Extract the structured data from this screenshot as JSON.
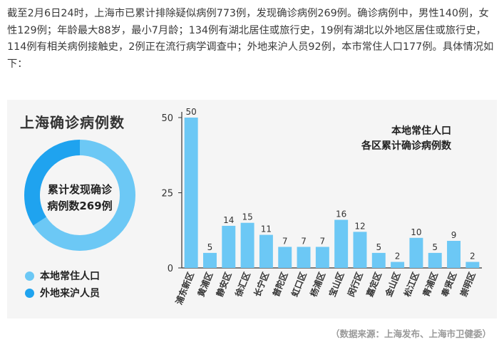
{
  "intro": {
    "text": "截至2月6日24时，上海市已累计排除疑似病例773例，发现确诊病例269例。确诊病例中，男性140例，女性129例；年龄最大88岁，最小7月龄；134例有湖北居住或旅行史，19例有湖北以外地区居住或旅行史，114例有相关病例接触史，2例正在流行病学调查中；外地来沪人员92例，本市常住人口177例。具体情况如下："
  },
  "left_panel": {
    "title": "上海确诊病例数",
    "donut_center_line1": "累计发现确诊",
    "donut_center_line2": "病例数269例",
    "legend": [
      {
        "label": "本地常住人口",
        "color": "#6cc8f5",
        "value": 177
      },
      {
        "label": "外地来沪人员",
        "color": "#1fa3ef",
        "value": 92
      }
    ]
  },
  "chart_data": {
    "type": "bar",
    "title": "本地常住人口\n各区累计确诊病例数",
    "categories": [
      "浦东新区",
      "黄浦区",
      "静安区",
      "徐汇区",
      "长宁区",
      "普陀区",
      "虹口区",
      "杨浦区",
      "宝山区",
      "闵行区",
      "嘉定区",
      "金山区",
      "松江区",
      "青浦区",
      "奉贤区",
      "崇明区"
    ],
    "values": [
      50,
      5,
      14,
      15,
      11,
      7,
      7,
      7,
      16,
      12,
      5,
      2,
      10,
      5,
      9,
      2
    ],
    "ylim": [
      0,
      50
    ],
    "yticks": [
      0,
      25,
      50
    ],
    "bar_color": "#6cc8f5",
    "grid": false
  },
  "source": "（数据来源：上海发布、上海市卫健委）"
}
